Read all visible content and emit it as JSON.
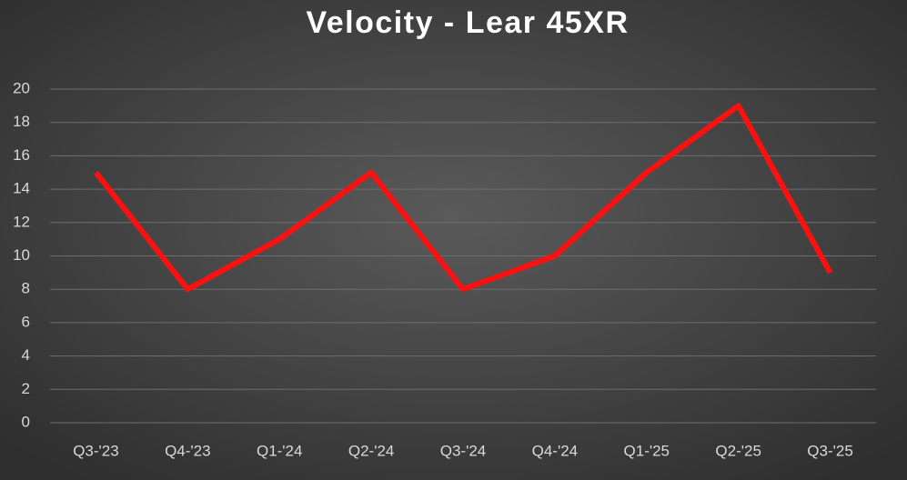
{
  "chart_data": {
    "type": "line",
    "title": "Velocity - Lear 45XR",
    "categories": [
      "Q3-'23",
      "Q4-'23",
      "Q1-'24",
      "Q2-'24",
      "Q3-'24",
      "Q4-'24",
      "Q1-'25",
      "Q2-'25",
      "Q3-'25"
    ],
    "values": [
      15,
      8,
      11,
      15,
      8,
      10,
      15,
      19,
      9
    ],
    "color": "#ff1010",
    "ylim": [
      0,
      20
    ],
    "yticks": [
      0,
      2,
      4,
      6,
      8,
      10,
      12,
      14,
      16,
      18,
      20
    ],
    "grid": true
  }
}
